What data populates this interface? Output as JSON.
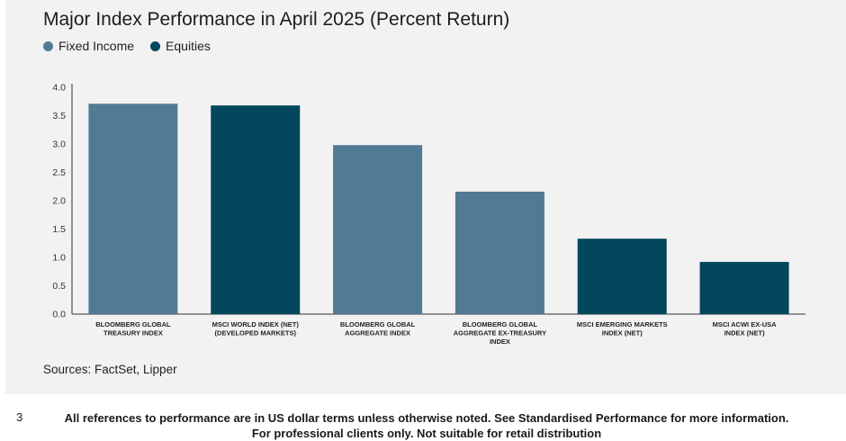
{
  "chart_data": {
    "type": "bar",
    "title": "Major Index Performance in April 2025 (Percent Return)",
    "legend": [
      {
        "name": "Fixed Income",
        "color": "#527a95"
      },
      {
        "name": "Equities",
        "color": "#02475c"
      }
    ],
    "categories": [
      [
        "BLOOMBERG GLOBAL",
        "TREASURY INDEX"
      ],
      [
        "MSCI WORLD INDEX (NET)",
        "(DEVELOPED MARKETS)"
      ],
      [
        "BLOOMBERG GLOBAL",
        "AGGREGATE INDEX"
      ],
      [
        "BLOOMBERG GLOBAL",
        "AGGREGATE EX-TREASURY",
        "INDEX"
      ],
      [
        "MSCI EMERGING MARKETS",
        "INDEX (NET)"
      ],
      [
        "MSCI ACWI EX-USA",
        "INDEX (NET)"
      ]
    ],
    "values": [
      3.71,
      3.68,
      2.98,
      2.16,
      1.33,
      0.92
    ],
    "series_of_bar": [
      "Fixed Income",
      "Equities",
      "Fixed Income",
      "Fixed Income",
      "Equities",
      "Equities"
    ],
    "ylim": [
      0,
      4.0
    ],
    "yticks": [
      "0.0",
      "0.5",
      "1.0",
      "1.5",
      "2.0",
      "2.5",
      "3.0",
      "3.5",
      "4.0"
    ],
    "grid": false,
    "legend_position": "top-left"
  },
  "sources": "Sources: FactSet, Lipper",
  "footer": {
    "page_number": "3",
    "line1": "All references to performance are in US dollar terms unless otherwise noted. See Standardised Performance for more information.",
    "line2": "For professional clients only. Not suitable for retail distribution"
  }
}
